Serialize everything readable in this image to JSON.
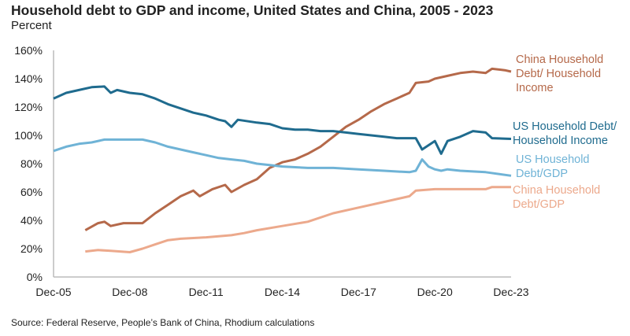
{
  "chart_data": {
    "type": "line",
    "title": "Household debt to GDP and income, United States and China, 2005 - 2023",
    "subtitle": "Percent",
    "source": "Source: Federal Reserve, People’s Bank of China, Rhodium calculations",
    "xlabel": "",
    "ylabel": "",
    "xlim": [
      "2005-12",
      "2023-12"
    ],
    "ylim": [
      0,
      160
    ],
    "x_ticks": [
      "Dec-05",
      "Dec-08",
      "Dec-11",
      "Dec-14",
      "Dec-17",
      "Dec-20",
      "Dec-23"
    ],
    "y_ticks": [
      "0%",
      "20%",
      "40%",
      "60%",
      "80%",
      "100%",
      "120%",
      "140%",
      "160%"
    ],
    "grid": false,
    "legend": "direct labels at right",
    "series": [
      {
        "name": "China Household Debt/ Household Income",
        "label_lines": [
          "China Household",
          "Debt/ Household",
          "Income"
        ],
        "color": "#b5694a",
        "points": [
          [
            "2007-03",
            33
          ],
          [
            "2007-09",
            38
          ],
          [
            "2007-12",
            39
          ],
          [
            "2008-03",
            36
          ],
          [
            "2008-09",
            38
          ],
          [
            "2009-03",
            38
          ],
          [
            "2009-06",
            38
          ],
          [
            "2009-12",
            45
          ],
          [
            "2010-06",
            51
          ],
          [
            "2010-12",
            57
          ],
          [
            "2011-06",
            61
          ],
          [
            "2011-09",
            57
          ],
          [
            "2012-03",
            62
          ],
          [
            "2012-09",
            65
          ],
          [
            "2012-12",
            60
          ],
          [
            "2013-06",
            65
          ],
          [
            "2013-12",
            69
          ],
          [
            "2014-06",
            77
          ],
          [
            "2014-12",
            81
          ],
          [
            "2015-06",
            83
          ],
          [
            "2015-12",
            87
          ],
          [
            "2016-06",
            92
          ],
          [
            "2016-12",
            99
          ],
          [
            "2017-06",
            106
          ],
          [
            "2017-12",
            111
          ],
          [
            "2018-06",
            117
          ],
          [
            "2018-12",
            122
          ],
          [
            "2019-06",
            126
          ],
          [
            "2019-12",
            130
          ],
          [
            "2020-03",
            137
          ],
          [
            "2020-09",
            138
          ],
          [
            "2020-12",
            140
          ],
          [
            "2021-06",
            142
          ],
          [
            "2021-12",
            144
          ],
          [
            "2022-06",
            145
          ],
          [
            "2022-12",
            144
          ],
          [
            "2023-03",
            147
          ],
          [
            "2023-09",
            146
          ],
          [
            "2023-12",
            145
          ]
        ]
      },
      {
        "name": "US Household Debt/ Household Income",
        "label_lines": [
          "US Household Debt/",
          "Household Income"
        ],
        "color": "#1f6b8e",
        "points": [
          [
            "2005-12",
            126
          ],
          [
            "2006-06",
            130
          ],
          [
            "2006-12",
            132
          ],
          [
            "2007-06",
            134
          ],
          [
            "2007-12",
            134.5
          ],
          [
            "2008-03",
            130
          ],
          [
            "2008-06",
            132
          ],
          [
            "2008-12",
            130
          ],
          [
            "2009-06",
            129
          ],
          [
            "2009-12",
            126
          ],
          [
            "2010-06",
            122
          ],
          [
            "2010-12",
            119
          ],
          [
            "2011-06",
            116
          ],
          [
            "2011-12",
            114
          ],
          [
            "2012-06",
            111
          ],
          [
            "2012-09",
            110
          ],
          [
            "2012-12",
            106
          ],
          [
            "2013-03",
            111
          ],
          [
            "2013-12",
            109
          ],
          [
            "2014-06",
            108
          ],
          [
            "2014-12",
            105
          ],
          [
            "2015-06",
            104
          ],
          [
            "2015-12",
            104
          ],
          [
            "2016-06",
            103
          ],
          [
            "2016-12",
            103
          ],
          [
            "2017-06",
            102
          ],
          [
            "2017-12",
            101
          ],
          [
            "2018-06",
            100
          ],
          [
            "2018-12",
            99
          ],
          [
            "2019-06",
            98
          ],
          [
            "2019-12",
            98
          ],
          [
            "2020-03",
            98
          ],
          [
            "2020-06",
            90
          ],
          [
            "2020-12",
            96
          ],
          [
            "2021-03",
            87
          ],
          [
            "2021-06",
            96
          ],
          [
            "2021-12",
            99
          ],
          [
            "2022-06",
            103
          ],
          [
            "2022-12",
            102
          ],
          [
            "2023-03",
            98
          ],
          [
            "2023-12",
            97.5
          ]
        ]
      },
      {
        "name": "US Household Debt/GDP",
        "label_lines": [
          "US Household",
          "Debt/GDP"
        ],
        "color": "#6fb3d6",
        "points": [
          [
            "2005-12",
            89
          ],
          [
            "2006-06",
            92
          ],
          [
            "2006-12",
            94
          ],
          [
            "2007-06",
            95
          ],
          [
            "2007-12",
            97
          ],
          [
            "2008-06",
            97
          ],
          [
            "2008-12",
            97
          ],
          [
            "2009-06",
            97
          ],
          [
            "2009-12",
            95
          ],
          [
            "2010-06",
            92
          ],
          [
            "2010-12",
            90
          ],
          [
            "2011-06",
            88
          ],
          [
            "2011-12",
            86
          ],
          [
            "2012-06",
            84
          ],
          [
            "2012-12",
            83
          ],
          [
            "2013-06",
            82
          ],
          [
            "2013-12",
            80
          ],
          [
            "2014-06",
            79
          ],
          [
            "2014-12",
            78
          ],
          [
            "2015-12",
            77
          ],
          [
            "2016-12",
            77
          ],
          [
            "2017-12",
            76
          ],
          [
            "2018-12",
            75
          ],
          [
            "2019-12",
            74
          ],
          [
            "2020-03",
            75
          ],
          [
            "2020-06",
            83
          ],
          [
            "2020-09",
            78
          ],
          [
            "2020-12",
            76
          ],
          [
            "2021-03",
            75
          ],
          [
            "2021-06",
            76
          ],
          [
            "2021-12",
            75
          ],
          [
            "2022-12",
            74
          ],
          [
            "2023-12",
            71.5
          ]
        ]
      },
      {
        "name": "China Household Debt/GDP",
        "label_lines": [
          "China Household",
          "Debt/GDP"
        ],
        "color": "#eca98c",
        "points": [
          [
            "2007-03",
            18
          ],
          [
            "2007-09",
            19
          ],
          [
            "2008-03",
            18.5
          ],
          [
            "2008-12",
            17.5
          ],
          [
            "2009-06",
            20
          ],
          [
            "2009-12",
            23
          ],
          [
            "2010-06",
            26
          ],
          [
            "2010-12",
            27
          ],
          [
            "2011-06",
            27.5
          ],
          [
            "2011-12",
            28
          ],
          [
            "2012-12",
            29.5
          ],
          [
            "2013-06",
            31
          ],
          [
            "2013-12",
            33
          ],
          [
            "2014-12",
            36
          ],
          [
            "2015-12",
            39
          ],
          [
            "2016-12",
            45
          ],
          [
            "2017-12",
            49
          ],
          [
            "2018-12",
            53
          ],
          [
            "2019-12",
            57
          ],
          [
            "2020-03",
            61
          ],
          [
            "2020-12",
            62
          ],
          [
            "2021-12",
            62
          ],
          [
            "2022-12",
            62
          ],
          [
            "2023-03",
            63.5
          ],
          [
            "2023-12",
            63.5
          ]
        ]
      }
    ]
  }
}
